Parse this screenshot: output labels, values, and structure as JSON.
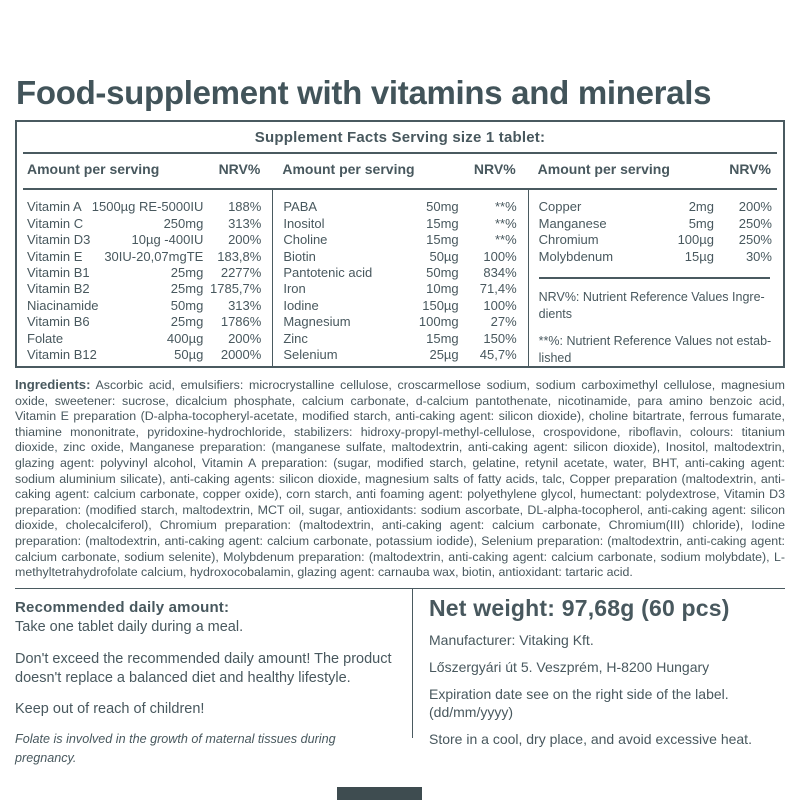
{
  "title": "Food-supplement with vitamins and minerals",
  "colors": {
    "ink": "#48585e",
    "title": "#42545a",
    "border": "#4a5a60"
  },
  "table": {
    "caption": "Supplement Facts Serving size 1 tablet:",
    "header": {
      "amount": "Amount per serving",
      "nrv": "NRV%"
    },
    "group1": [
      {
        "name": "Vitamin A",
        "amount": "1500µg RE-5000IU",
        "nrv": "188%"
      },
      {
        "name": "Vitamin C",
        "amount": "250mg",
        "nrv": "313%"
      },
      {
        "name": "Vitamin D3",
        "amount": "10µg -400IU",
        "nrv": "200%"
      },
      {
        "name": "Vitamin E",
        "amount": "30IU-20,07mgTE",
        "nrv": "183,8%"
      },
      {
        "name": "Vitamin B1",
        "amount": "25mg",
        "nrv": "2277%"
      },
      {
        "name": "Vitamin B2",
        "amount": "25mg",
        "nrv": "1785,7%"
      },
      {
        "name": "Niacinamide",
        "amount": "50mg",
        "nrv": "313%"
      },
      {
        "name": "Vitamin B6",
        "amount": "25mg",
        "nrv": "1786%"
      },
      {
        "name": "Folate",
        "amount": "400µg",
        "nrv": "200%"
      },
      {
        "name": "Vitamin B12",
        "amount": "50µg",
        "nrv": "2000%"
      }
    ],
    "group2": [
      {
        "name": "PABA",
        "amount": "50mg",
        "nrv": "**%"
      },
      {
        "name": "Inositol",
        "amount": "15mg",
        "nrv": "**%"
      },
      {
        "name": "Choline",
        "amount": "15mg",
        "nrv": "**%"
      },
      {
        "name": "Biotin",
        "amount": "50µg",
        "nrv": "100%"
      },
      {
        "name": "Pantotenic acid",
        "amount": "50mg",
        "nrv": "834%"
      },
      {
        "name": "Iron",
        "amount": "10mg",
        "nrv": "71,4%"
      },
      {
        "name": "Iodine",
        "amount": "150µg",
        "nrv": "100%"
      },
      {
        "name": "Magnesium",
        "amount": "100mg",
        "nrv": "27%"
      },
      {
        "name": "Zinc",
        "amount": "15mg",
        "nrv": "150%"
      },
      {
        "name": "Selenium",
        "amount": "25µg",
        "nrv": "45,7%"
      }
    ],
    "group3": [
      {
        "name": "Copper",
        "amount": "2mg",
        "nrv": "200%"
      },
      {
        "name": "Manganese",
        "amount": "5mg",
        "nrv": "250%"
      },
      {
        "name": "Chromium",
        "amount": "100µg",
        "nrv": "250%"
      },
      {
        "name": "Molybdenum",
        "amount": "15µg",
        "nrv": "30%"
      }
    ],
    "notes": {
      "nrv": "NRV%: Nutrient Reference Values Ingre-\ndients",
      "asterisk": "**%: Nutrient Reference Values not estab-\nlished"
    }
  },
  "ingredients": {
    "label": "Ingredients:",
    "text": " Ascorbic acid, emulsifiers: microcrystalline cellulose, croscarmellose sodium, sodium carboximethyl cellulose, magnesium oxide, sweetener: sucrose, dicalcium phosphate, calcium carbonate, d-calcium pantothenate, nicotinamide, para amino benzoic acid, Vitamin E preparation (D-alpha-tocopheryl-acetate, modified starch, anti-caking agent: silicon dioxide), choline bitartrate, ferrous fumarate, thiamine mononitrate, pyridoxine-hydrochloride, stabilizers: hidroxy-propyl-methyl-cellulose, crospovidone, riboflavin, colours: titanium dioxide, zinc oxide, Manganese preparation: (manganese sulfate, maltodextrin, anti-caking agent: silicon dioxide), Inositol, maltodextrin, glazing agent: polyvinyl alcohol, Vitamin A preparation: (sugar, modified starch, gelatine, retynil acetate, water, BHT, anti-caking agent: sodium aluminium silicate), anti-caking agents: silicon dioxide, magnesium salts of fatty acids, talc, Copper preparation (maltodextrin, anti- caking agent: calcium carbonate, copper oxide), corn starch, anti foaming agent: polyethylene glycol, humectant: polydextrose, Vitamin D3 preparation: (modified starch, maltodextrin, MCT oil, sugar, antioxidants: sodium ascorbate, DL-alpha-tocopherol, anti-caking agent: silicon dioxide, cholecalciferol), Chromium preparation: (maltodextrin, anti-caking agent: calcium carbonate, Chromium(III) chloride), Iodine preparation: (maltodextrin, anti-caking agent: calcium carbonate, potassium iodide), Selenium preparation: (maltodextrin, anti-caking agent: calcium carbonate, sodium selenite), Molybdenum preparation: (maltodextrin, anti-caking agent: calcium carbonate, sodium molybdate), L-methyltetrahydrofolate calcium, hydroxocobalamin, glazing agent: carnauba wax, biotin, antioxidant: tartaric acid."
  },
  "daily": {
    "heading": "Recommended daily amount:",
    "take": "Take one tablet daily during a meal.",
    "warning": "Don't exceed the recommended daily amount! The product doesn't replace a balanced diet and healthy lifestyle.",
    "children": "Keep out of reach of children!",
    "folate": "Folate is involved in the growth of maternal tissues during pregnancy."
  },
  "product": {
    "net_weight": "Net weight: 97,68g (60 pcs)",
    "manufacturer": "Manufacturer: Vitaking Kft.",
    "address": "Lőszergyári út 5. Veszprém, H-8200 Hungary",
    "expiration": "Expiration date see on the right side of the label.\n(dd/mm/yyyy)",
    "storage": "Store in a cool, dry place, and avoid excessive heat."
  }
}
